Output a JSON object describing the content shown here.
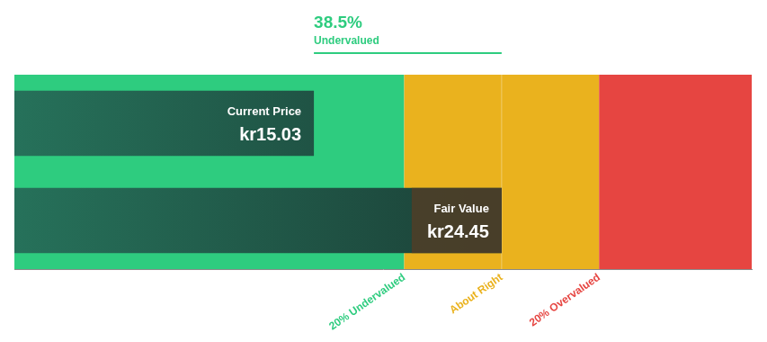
{
  "chart_data": {
    "type": "bar",
    "orientation": "horizontal",
    "categories": [
      "Current Price",
      "Fair Value"
    ],
    "values": [
      15.03,
      24.45
    ],
    "value_labels": [
      "kr15.03",
      "kr24.45"
    ],
    "data_labels": true,
    "xlim": [
      0,
      37
    ],
    "tick_labels": false,
    "grid": false,
    "zones": [
      {
        "label": "20% Undervalued",
        "from": 0,
        "to": 19.56,
        "color": "#2ecc7f"
      },
      {
        "label": "About Right",
        "from": 19.56,
        "to": 29.34,
        "color": "#eab21e"
      },
      {
        "label": "20% Overvalued",
        "from": 29.34,
        "to": 37,
        "color": "#e64541"
      }
    ],
    "discount": {
      "value": 38.5,
      "label": "38.5%",
      "text": "Undervalued"
    }
  }
}
